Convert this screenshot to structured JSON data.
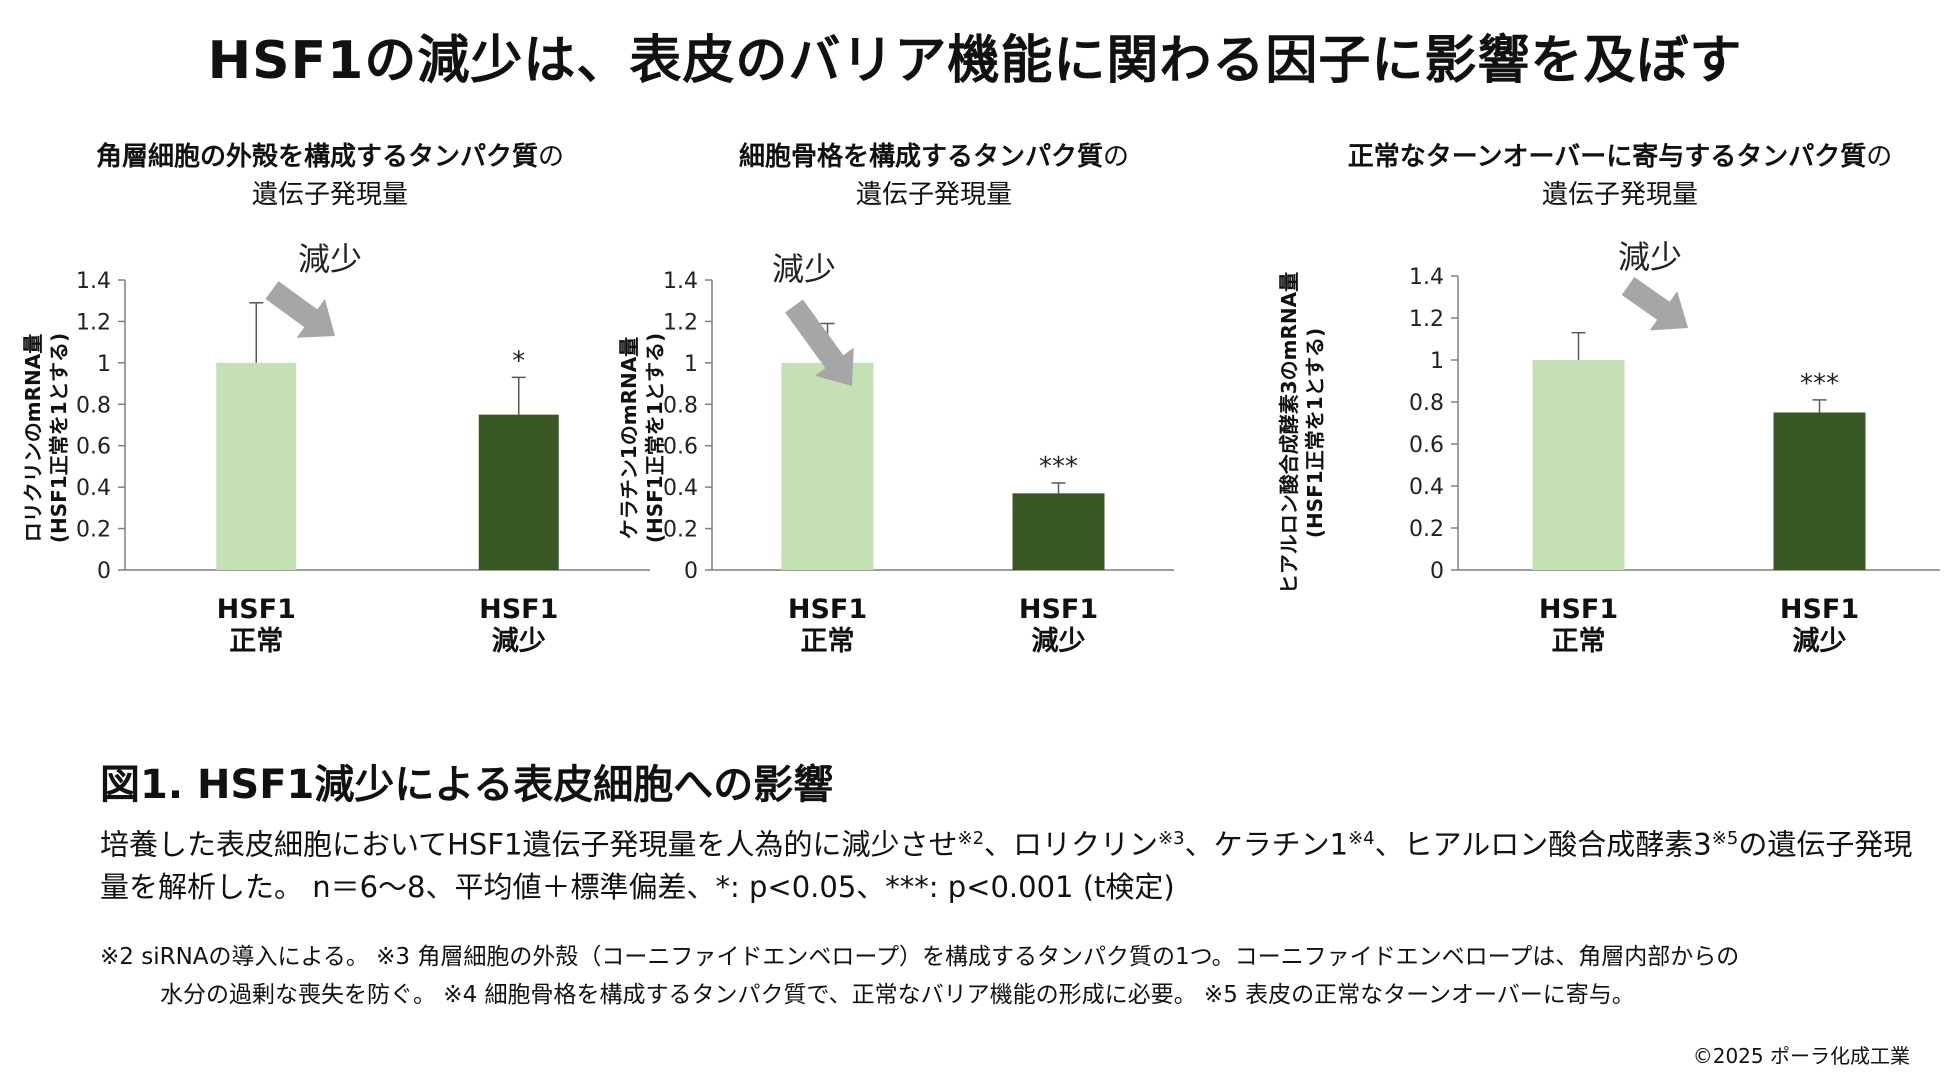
{
  "title": "HSF1の減少は、表皮のバリア機能に関わる因子に影響を及ぼす",
  "colors": {
    "normal_bar": "#c5e0b4",
    "reduced_bar": "#385723",
    "arrow": "#a6a6a6",
    "axis": "#7f7f7f"
  },
  "panels": [
    {
      "title_bold": "角層細胞の外殻を構成するタンパク質",
      "title_suffix": "の",
      "title_line2": "遺伝子発現量",
      "ylabel_line1": "ロリクリンのmRNA量",
      "ylabel_line2": "(HSF1正常を1とする)",
      "arrow_label": "減少"
    },
    {
      "title_bold": "細胞骨格を構成するタンパク質",
      "title_suffix": "の",
      "title_line2": "遺伝子発現量",
      "ylabel_line1": "ケラチン1のmRNA量",
      "ylabel_line2": "(HSF1正常を1とする)",
      "arrow_label": "減少"
    },
    {
      "title_bold": "正常なターンオーバーに寄与するタンパク質",
      "title_suffix": "の",
      "title_line2": "遺伝子発現量",
      "ylabel_line1": "ヒアルロン酸合成酵素3のmRNA量",
      "ylabel_line2": "(HSF1正常を1とする)",
      "arrow_label": "減少"
    }
  ],
  "chart_data": [
    {
      "type": "bar",
      "categories": [
        [
          "HSF1",
          "正常"
        ],
        [
          "HSF1",
          "減少"
        ]
      ],
      "values": [
        1.0,
        0.75
      ],
      "errors": [
        0.29,
        0.18
      ],
      "significance": [
        "",
        "*"
      ],
      "yticks": [
        "0",
        "0.2",
        "0.4",
        "0.6",
        "0.8",
        "1",
        "1.2",
        "1.4"
      ],
      "ylim": [
        0,
        1.4
      ],
      "ylabel": "ロリクリンのmRNA量 (HSF1正常を1とする)",
      "annotation": "減少"
    },
    {
      "type": "bar",
      "categories": [
        [
          "HSF1",
          "正常"
        ],
        [
          "HSF1",
          "減少"
        ]
      ],
      "values": [
        1.0,
        0.37
      ],
      "errors": [
        0.19,
        0.05
      ],
      "significance": [
        "",
        "***"
      ],
      "yticks": [
        "0",
        "0.2",
        "0.4",
        "0.6",
        "0.8",
        "1",
        "1.2",
        "1.4"
      ],
      "ylim": [
        0,
        1.4
      ],
      "ylabel": "ケラチン1のmRNA量 (HSF1正常を1とする)",
      "annotation": "減少"
    },
    {
      "type": "bar",
      "categories": [
        [
          "HSF1",
          "正常"
        ],
        [
          "HSF1",
          "減少"
        ]
      ],
      "values": [
        1.0,
        0.75
      ],
      "errors": [
        0.13,
        0.06
      ],
      "significance": [
        "",
        "***"
      ],
      "yticks": [
        "0",
        "0.2",
        "0.4",
        "0.6",
        "0.8",
        "1",
        "1.2",
        "1.4"
      ],
      "ylim": [
        0,
        1.4
      ],
      "ylabel": "ヒアルロン酸合成酵素3のmRNA量 (HSF1正常を1とする)",
      "annotation": "減少"
    }
  ],
  "caption": {
    "title": "図1. HSF1減少による表皮細胞への影響",
    "p1": "培養した表皮細胞においてHSF1遺伝子発現量を人為的に減少させ",
    "m2": "※2",
    "p2": "、ロリクリン",
    "m3": "※3",
    "p3": "、ケラチン1",
    "m4": "※4",
    "p4": "、ヒアルロン酸合成酵素3",
    "m5": "※5",
    "p5": "の遺伝子発現量を解析した。 n＝6〜8、平均値＋標準偏差、*: p<0.05、***: p<0.001 (t検定)"
  },
  "notes": {
    "line1": "※2 siRNAの導入による。 ※3 角層細胞の外殻（コーニファイドエンベロープ）を構成するタンパク質の1つ。コーニファイドエンベロープは、角層内部からの",
    "line2": "水分の過剰な喪失を防ぐ。 ※4 細胞骨格を構成するタンパク質で、正常なバリア機能の形成に必要。 ※5 表皮の正常なターンオーバーに寄与。"
  },
  "copyright": "©2025 ポーラ化成工業"
}
